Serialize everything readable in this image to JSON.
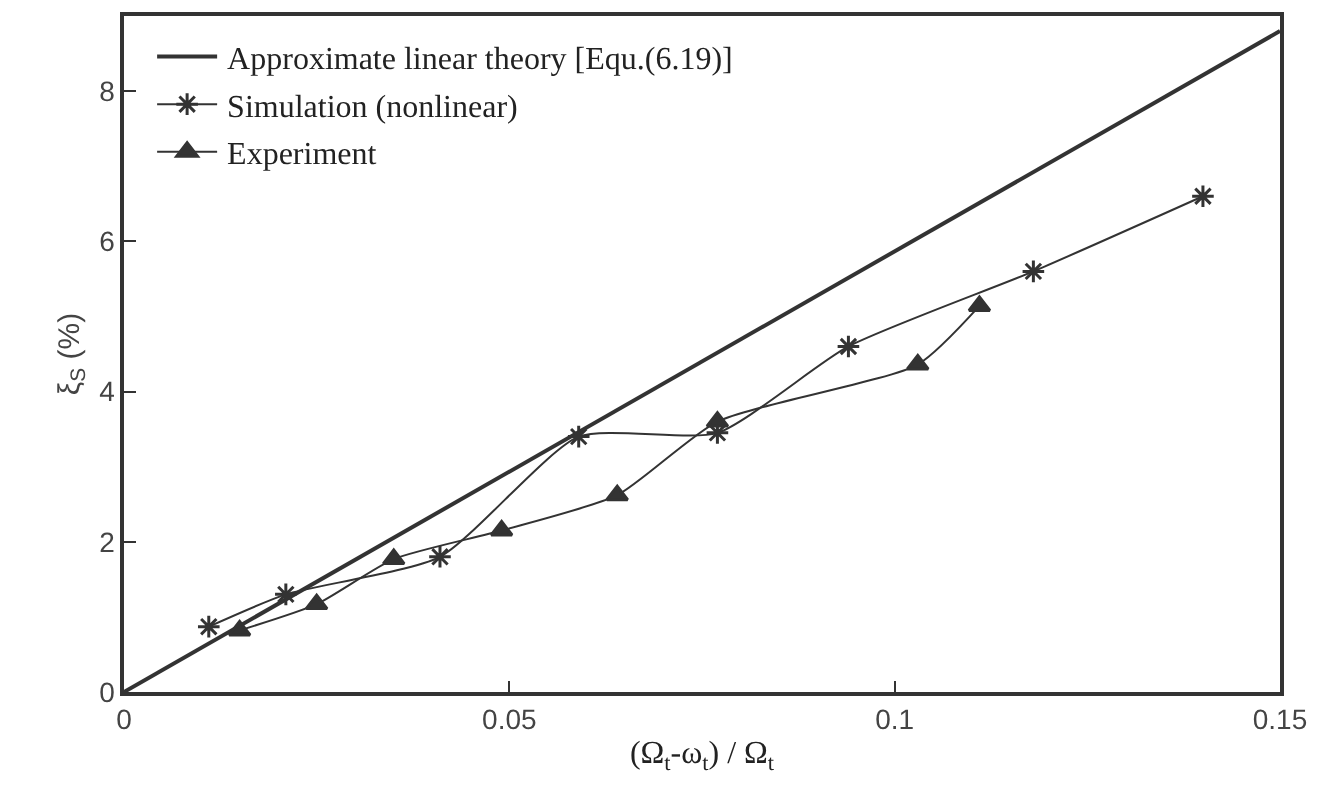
{
  "chart_data": {
    "type": "line",
    "xlabel": "(Ω$_{t}$-ω$_{t}$) / Ω$_{t}$",
    "ylabel": "ξ$_{S}$ (%)",
    "xlim": [
      0,
      0.15
    ],
    "xticks": [
      0,
      0.05,
      0.1,
      0.15
    ],
    "ylim": [
      0,
      9
    ],
    "yticks": [
      0,
      2,
      4,
      6,
      8
    ],
    "legend": "top left",
    "line_style": "solid",
    "series": [
      {
        "name": "Approximate linear theory [Equ.(6.19)]",
        "color": "#333333",
        "marker": "none",
        "x": [
          0,
          0.15
        ],
        "values": [
          0,
          8.8
        ]
      },
      {
        "name": "Simulation (nonlinear)",
        "color": "#333333",
        "marker": "cross",
        "x": [
          0.011,
          0.021,
          0.041,
          0.059,
          0.077,
          0.094,
          0.118,
          0.14
        ],
        "values": [
          0.87,
          1.3,
          1.8,
          3.4,
          3.45,
          4.6,
          5.6,
          6.6
        ]
      },
      {
        "name": "Experiment",
        "color": "#333333",
        "marker": "triangle",
        "x": [
          0.015,
          0.025,
          0.035,
          0.049,
          0.064,
          0.077,
          0.103,
          0.111
        ],
        "values": [
          0.82,
          1.17,
          1.77,
          2.15,
          2.62,
          3.6,
          4.36,
          5.14
        ]
      }
    ]
  }
}
